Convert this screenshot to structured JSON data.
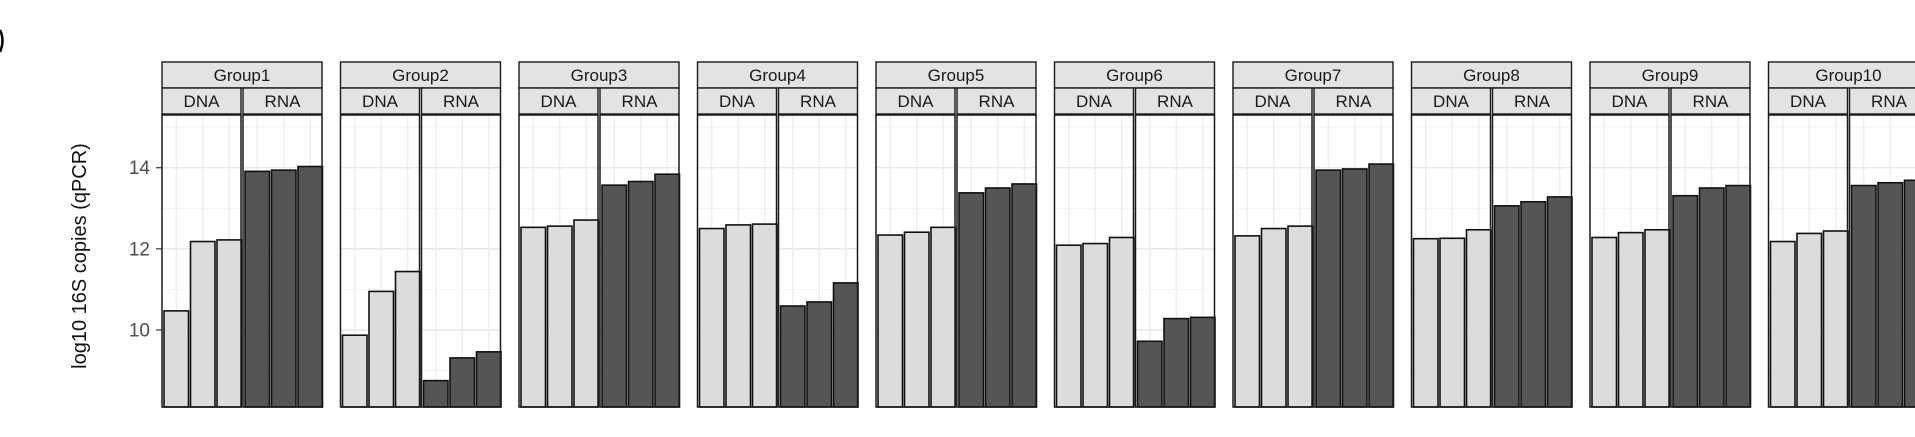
{
  "chart_data": {
    "type": "bar",
    "ylabel": "log10 16S copies (qPCR)",
    "ylim": [
      8.1,
      15.3
    ],
    "yticks": [
      10,
      12,
      14
    ],
    "subpanels": [
      "DNA",
      "RNA"
    ],
    "colors": {
      "DNA": "#dcdcdc",
      "RNA": "#555555"
    },
    "grid": true,
    "groups": [
      {
        "name": "Group1",
        "DNA": [
          10.47,
          12.18,
          12.22
        ],
        "RNA": [
          13.91,
          13.94,
          14.03
        ]
      },
      {
        "name": "Group2",
        "DNA": [
          9.87,
          10.95,
          11.44
        ],
        "RNA": [
          8.75,
          9.31,
          9.46
        ]
      },
      {
        "name": "Group3",
        "DNA": [
          12.53,
          12.56,
          12.71
        ],
        "RNA": [
          13.57,
          13.66,
          13.84
        ]
      },
      {
        "name": "Group4",
        "DNA": [
          12.5,
          12.59,
          12.61
        ],
        "RNA": [
          10.59,
          10.69,
          11.16
        ]
      },
      {
        "name": "Group5",
        "DNA": [
          12.34,
          12.41,
          12.53
        ],
        "RNA": [
          13.38,
          13.5,
          13.6
        ]
      },
      {
        "name": "Group6",
        "DNA": [
          12.09,
          12.13,
          12.28
        ],
        "RNA": [
          9.72,
          10.28,
          10.31
        ]
      },
      {
        "name": "Group7",
        "DNA": [
          12.32,
          12.5,
          12.56
        ],
        "RNA": [
          13.94,
          13.97,
          14.09
        ]
      },
      {
        "name": "Group8",
        "DNA": [
          12.25,
          12.26,
          12.47
        ],
        "RNA": [
          13.06,
          13.16,
          13.28
        ]
      },
      {
        "name": "Group9",
        "DNA": [
          12.28,
          12.4,
          12.47
        ],
        "RNA": [
          13.31,
          13.5,
          13.56
        ]
      },
      {
        "name": "Group10",
        "DNA": [
          12.18,
          12.38,
          12.44
        ],
        "RNA": [
          13.56,
          13.63,
          13.69
        ]
      }
    ]
  }
}
